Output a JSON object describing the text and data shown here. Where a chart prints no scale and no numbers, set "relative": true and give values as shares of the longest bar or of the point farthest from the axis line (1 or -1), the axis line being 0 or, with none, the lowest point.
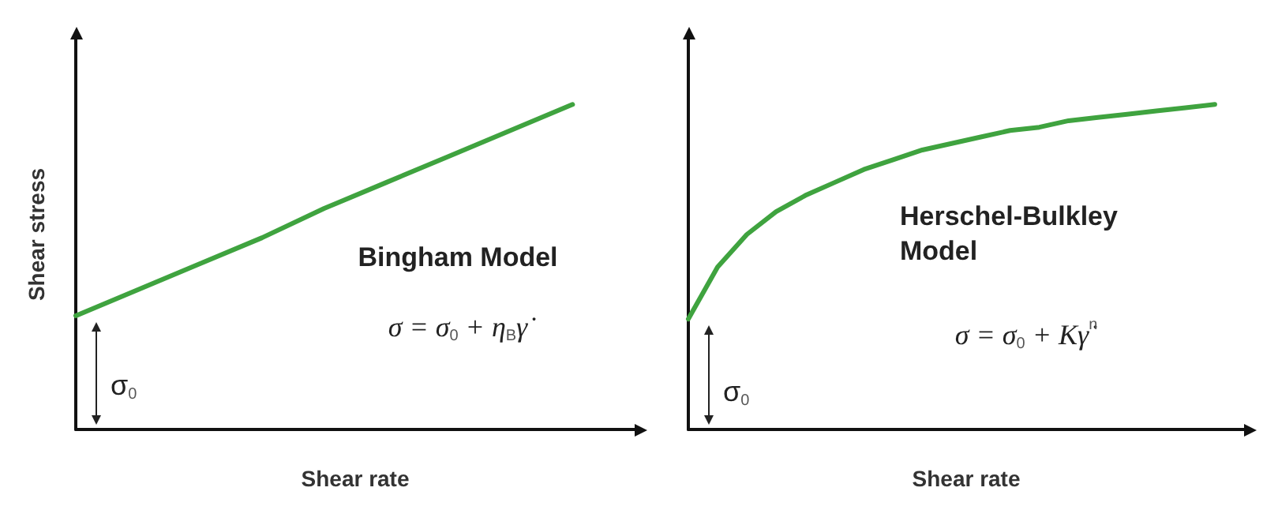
{
  "chart_data": [
    {
      "type": "line",
      "xlabel": "Shear rate",
      "ylabel": "Shear stress",
      "relative": true,
      "marker": "none",
      "line_style": "solid",
      "categories": [
        null,
        null,
        null,
        null,
        null,
        null,
        null,
        null,
        null,
        null
      ],
      "series": [
        {
          "color": "#3fa33f",
          "values": [
            0.35,
            0.43,
            0.51,
            0.59,
            0.68,
            0.76,
            0.84,
            0.92,
            1.0,
            null
          ]
        }
      ],
      "annotations": [
        "Bingham Model",
        "σ = σ$_{0}$ + η$_{B}$γ̇",
        "σ$_{0}$"
      ]
    },
    {
      "type": "line",
      "xlabel": "Shear rate",
      "relative": true,
      "marker": "none",
      "line_style": "solid",
      "categories": [
        null,
        null,
        null,
        null,
        null,
        null,
        null,
        null,
        null,
        null,
        null,
        null,
        null,
        null,
        null,
        null,
        null,
        null,
        null,
        null
      ],
      "series": [
        {
          "color": "#3fa33f",
          "values": [
            0.34,
            0.5,
            0.6,
            0.67,
            0.72,
            0.76,
            0.8,
            0.83,
            0.86,
            0.88,
            0.9,
            0.92,
            0.93,
            0.95,
            0.96,
            0.97,
            0.98,
            0.99,
            1.0,
            null
          ]
        }
      ],
      "annotations": [
        "Herschel-Bulkley Model",
        "σ = σ$_{0}$ + Kγ̇$^{n}$",
        "σ$_{0}$"
      ]
    }
  ]
}
